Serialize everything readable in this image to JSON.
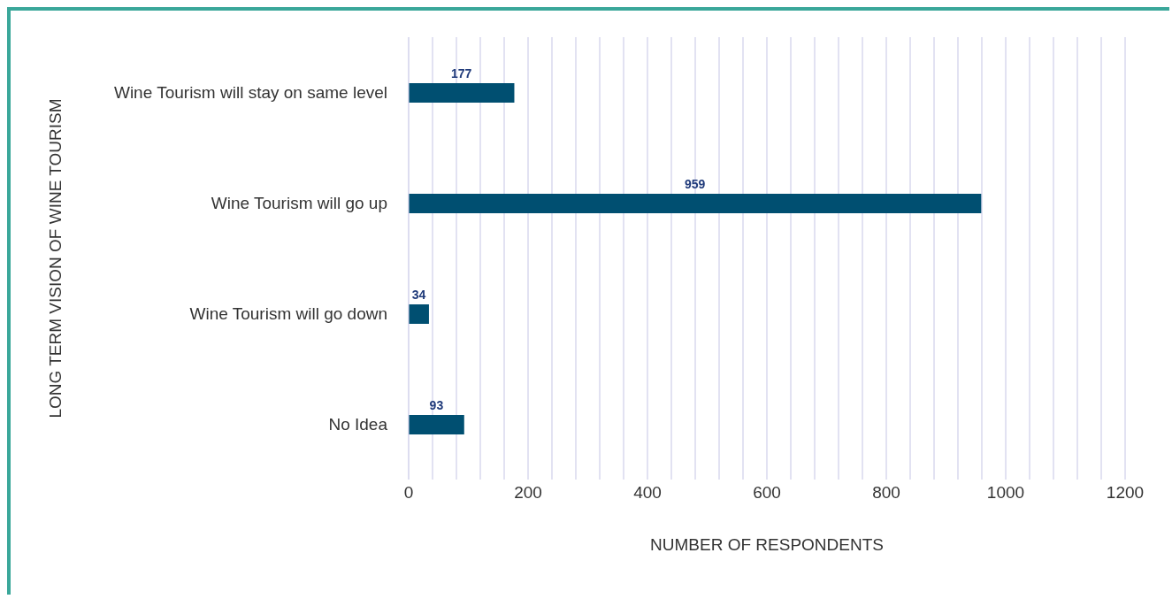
{
  "chart_data": {
    "type": "bar",
    "orientation": "horizontal",
    "categories": [
      "Wine Tourism will stay on same level",
      "Wine Tourism will go up",
      "Wine Tourism will go down",
      "No Idea"
    ],
    "values": [
      177,
      959,
      34,
      93
    ],
    "color": "#004f71",
    "data_labels": true,
    "xlabel": "NUMBER OF RESPONDENTS",
    "ylabel": "LONG TERM VISION OF WINE TOURISM",
    "xlim": [
      0,
      1200
    ],
    "xticks": [
      0,
      {
        "value": 40,
        "label": null
      },
      {
        "value": 80,
        "label": null
      },
      {
        "value": 120,
        "label": null
      },
      {
        "value": 160,
        "label": null
      },
      200,
      {
        "value": 240,
        "label": null
      },
      {
        "value": 280,
        "label": null
      },
      {
        "value": 320,
        "label": null
      },
      {
        "value": 360,
        "label": null
      },
      400,
      {
        "value": 440,
        "label": null
      },
      {
        "value": 480,
        "label": null
      },
      {
        "value": 520,
        "label": null
      },
      {
        "value": 560,
        "label": null
      },
      600,
      {
        "value": 640,
        "label": null
      },
      {
        "value": 680,
        "label": null
      },
      {
        "value": 720,
        "label": null
      },
      {
        "value": 760,
        "label": null
      },
      800,
      {
        "value": 840,
        "label": null
      },
      {
        "value": 880,
        "label": null
      },
      {
        "value": 920,
        "label": null
      },
      {
        "value": 960,
        "label": null
      },
      1000,
      {
        "value": 1040,
        "label": null
      },
      {
        "value": 1080,
        "label": null
      },
      {
        "value": 1120,
        "label": null
      },
      {
        "value": 1160,
        "label": null
      },
      1200
    ],
    "grid": "x"
  }
}
